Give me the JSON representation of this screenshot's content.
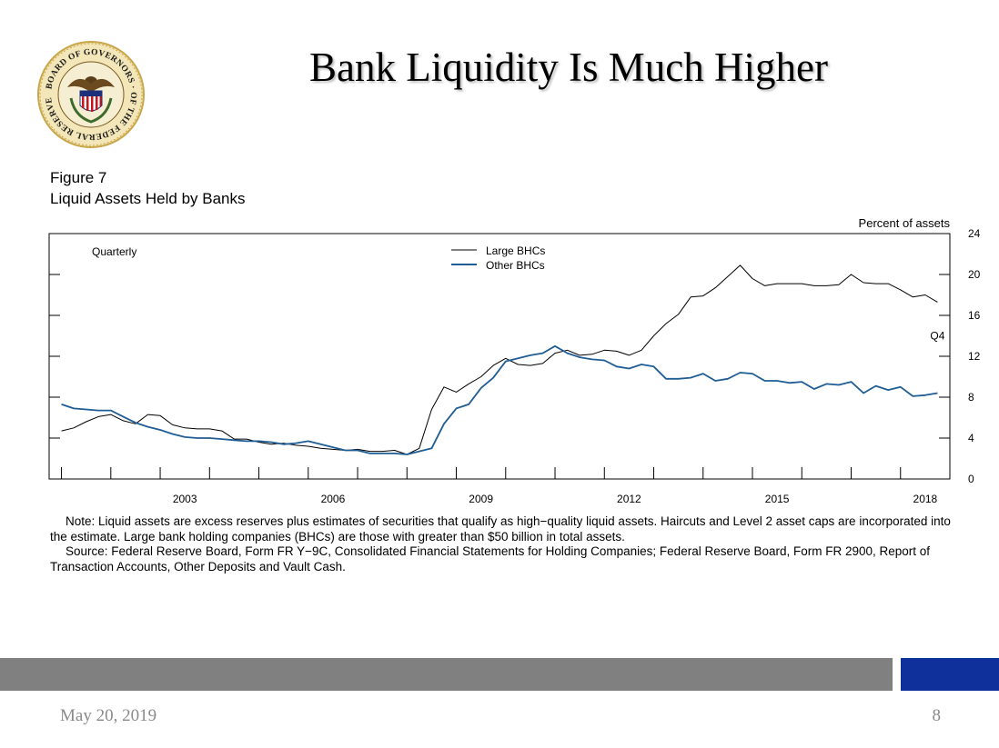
{
  "slide": {
    "title": "Bank Liquidity Is Much Higher",
    "seal_text": "BOARD OF GOVERNORS OF THE FEDERAL RESERVE SYSTEM",
    "date": "May 20, 2019",
    "page_number": "8",
    "colors": {
      "footer_bar": "#808080",
      "footer_accent": "#0f2f9a",
      "footer_text": "#8a8a8a"
    }
  },
  "figure": {
    "label": "Figure 7",
    "title": "Liquid Assets Held by Banks",
    "notes": [
      "Note: Liquid assets are excess reserves plus estimates of securities that qualify as high−quality liquid assets. Haircuts and Level 2 asset caps are incorporated into the estimate. Large bank holding companies (BHCs) are those with greater than $50 billion in total assets.",
      "Source: Federal Reserve Board, Form FR Y−9C, Consolidated Financial Statements for Holding Companies; Federal Reserve Board, Form FR 2900, Report of Transaction Accounts, Other Deposits and Vault Cash."
    ]
  },
  "chart_data": {
    "type": "line",
    "frequency_label": "Quarterly",
    "ylabel": "Percent of assets",
    "ylim": [
      0,
      24
    ],
    "yticks": [
      0,
      4,
      8,
      12,
      16,
      20,
      24
    ],
    "xlim": [
      2000.75,
      2019.0
    ],
    "xtick_labels": [
      "2003",
      "2006",
      "2009",
      "2012",
      "2015",
      "2018"
    ],
    "last_point_label": "Q4",
    "legend_position": "top-center",
    "grid": false,
    "series": [
      {
        "name": "Large BHCs",
        "color": "#000000",
        "x": [
          2001.0,
          2001.25,
          2001.5,
          2001.75,
          2002.0,
          2002.25,
          2002.5,
          2002.75,
          2003.0,
          2003.25,
          2003.5,
          2003.75,
          2004.0,
          2004.25,
          2004.5,
          2004.75,
          2005.0,
          2005.25,
          2005.5,
          2005.75,
          2006.0,
          2006.25,
          2006.5,
          2006.75,
          2007.0,
          2007.25,
          2007.5,
          2007.75,
          2008.0,
          2008.25,
          2008.5,
          2008.75,
          2009.0,
          2009.25,
          2009.5,
          2009.75,
          2010.0,
          2010.25,
          2010.5,
          2010.75,
          2011.0,
          2011.25,
          2011.5,
          2011.75,
          2012.0,
          2012.25,
          2012.5,
          2012.75,
          2013.0,
          2013.25,
          2013.5,
          2013.75,
          2014.0,
          2014.25,
          2014.5,
          2014.75,
          2015.0,
          2015.25,
          2015.5,
          2015.75,
          2016.0,
          2016.25,
          2016.5,
          2016.75,
          2017.0,
          2017.25,
          2017.5,
          2017.75,
          2018.0,
          2018.25,
          2018.5,
          2018.75
        ],
        "values": [
          4.7,
          5.0,
          5.6,
          6.1,
          6.3,
          5.7,
          5.4,
          6.3,
          6.2,
          5.3,
          5.0,
          4.9,
          4.9,
          4.7,
          3.9,
          3.9,
          3.6,
          3.4,
          3.5,
          3.3,
          3.2,
          3.0,
          2.9,
          2.8,
          2.9,
          2.7,
          2.7,
          2.8,
          2.4,
          3.0,
          6.8,
          9.0,
          8.5,
          9.3,
          10.0,
          11.1,
          11.8,
          11.2,
          11.1,
          11.3,
          12.3,
          12.6,
          12.1,
          12.2,
          12.6,
          12.5,
          12.1,
          12.6,
          14.0,
          15.2,
          16.1,
          17.8,
          17.9,
          18.7,
          19.8,
          20.9,
          19.6,
          18.9,
          19.1,
          19.1,
          19.1,
          18.9,
          18.9,
          19.0,
          20.0,
          19.2,
          19.1,
          19.1,
          18.5,
          17.8,
          18.0,
          17.3
        ]
      },
      {
        "name": "Other BHCs",
        "color": "#1f5d95",
        "x": [
          2001.0,
          2001.25,
          2001.5,
          2001.75,
          2002.0,
          2002.25,
          2002.5,
          2002.75,
          2003.0,
          2003.25,
          2003.5,
          2003.75,
          2004.0,
          2004.25,
          2004.5,
          2004.75,
          2005.0,
          2005.25,
          2005.5,
          2005.75,
          2006.0,
          2006.25,
          2006.5,
          2006.75,
          2007.0,
          2007.25,
          2007.5,
          2007.75,
          2008.0,
          2008.25,
          2008.5,
          2008.75,
          2009.0,
          2009.25,
          2009.5,
          2009.75,
          2010.0,
          2010.25,
          2010.5,
          2010.75,
          2011.0,
          2011.25,
          2011.5,
          2011.75,
          2012.0,
          2012.25,
          2012.5,
          2012.75,
          2013.0,
          2013.25,
          2013.5,
          2013.75,
          2014.0,
          2014.25,
          2014.5,
          2014.75,
          2015.0,
          2015.25,
          2015.5,
          2015.75,
          2016.0,
          2016.25,
          2016.5,
          2016.75,
          2017.0,
          2017.25,
          2017.5,
          2017.75,
          2018.0,
          2018.25,
          2018.5,
          2018.75
        ],
        "values": [
          7.3,
          6.9,
          6.8,
          6.7,
          6.7,
          6.1,
          5.5,
          5.1,
          4.8,
          4.4,
          4.1,
          4.0,
          4.0,
          3.9,
          3.8,
          3.7,
          3.7,
          3.6,
          3.4,
          3.5,
          3.7,
          3.4,
          3.1,
          2.8,
          2.8,
          2.5,
          2.5,
          2.5,
          2.4,
          2.7,
          3.0,
          5.4,
          6.9,
          7.3,
          8.9,
          9.9,
          11.5,
          11.8,
          12.1,
          12.3,
          13.0,
          12.3,
          11.9,
          11.7,
          11.6,
          11.0,
          10.8,
          11.2,
          11.0,
          9.8,
          9.8,
          9.9,
          10.3,
          9.6,
          9.8,
          10.4,
          10.3,
          9.6,
          9.6,
          9.4,
          9.5,
          8.8,
          9.3,
          9.2,
          9.5,
          8.4,
          9.1,
          8.7,
          9.0,
          8.1,
          8.2,
          8.4
        ]
      }
    ]
  }
}
